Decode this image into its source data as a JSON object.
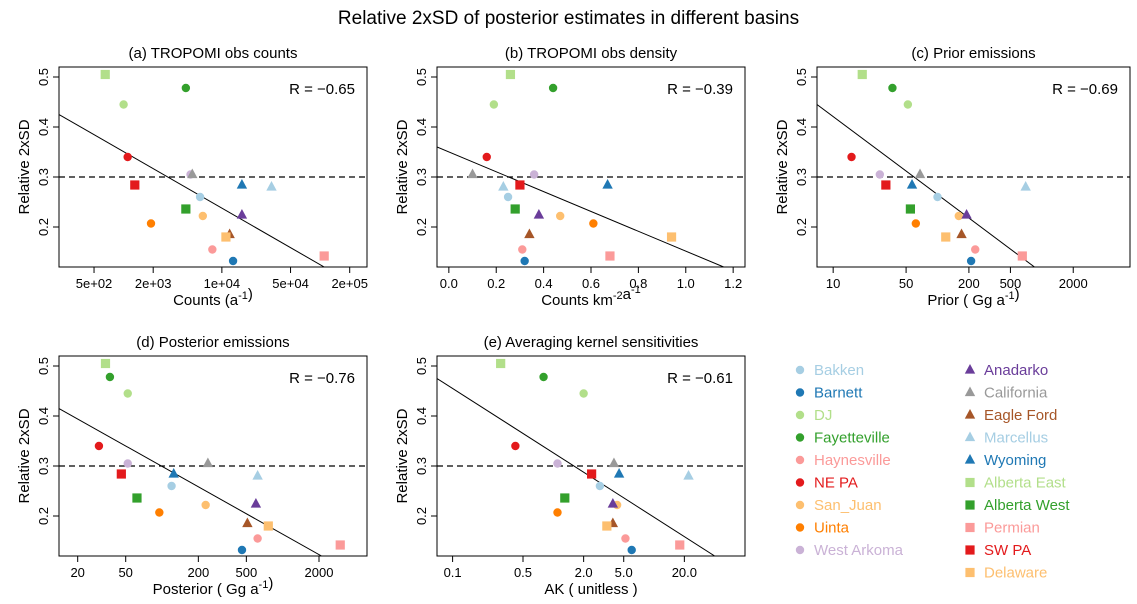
{
  "figure": {
    "title": "Relative 2xSD of posterior estimates in different basins",
    "reference_line": 0.3
  },
  "legend": [
    {
      "name": "Bakken",
      "color": "#a6cee3",
      "shape": "circle"
    },
    {
      "name": "Barnett",
      "color": "#1f78b4",
      "shape": "circle"
    },
    {
      "name": "DJ",
      "color": "#b2df8a",
      "shape": "circle"
    },
    {
      "name": "Fayetteville",
      "color": "#33a02c",
      "shape": "circle"
    },
    {
      "name": "Haynesville",
      "color": "#fb9a99",
      "shape": "circle"
    },
    {
      "name": "NE PA",
      "color": "#e31a1c",
      "shape": "circle"
    },
    {
      "name": "San_Juan",
      "color": "#fdbf6f",
      "shape": "circle"
    },
    {
      "name": "Uinta",
      "color": "#ff7f00",
      "shape": "circle"
    },
    {
      "name": "West Arkoma",
      "color": "#cab2d6",
      "shape": "circle"
    },
    {
      "name": "Anadarko",
      "color": "#6a3d9a",
      "shape": "triangle"
    },
    {
      "name": "California",
      "color": "#999999",
      "shape": "triangle"
    },
    {
      "name": "Eagle Ford",
      "color": "#a65628",
      "shape": "triangle"
    },
    {
      "name": "Marcellus",
      "color": "#a6cee3",
      "shape": "triangle"
    },
    {
      "name": "Wyoming",
      "color": "#1f78b4",
      "shape": "triangle"
    },
    {
      "name": "Alberta East",
      "color": "#b2df8a",
      "shape": "square"
    },
    {
      "name": "Alberta West",
      "color": "#33a02c",
      "shape": "square"
    },
    {
      "name": "Permian",
      "color": "#fb9a99",
      "shape": "square"
    },
    {
      "name": "SW PA",
      "color": "#e31a1c",
      "shape": "square"
    },
    {
      "name": "Delaware",
      "color": "#fdbf6f",
      "shape": "square"
    }
  ],
  "chart_data": [
    {
      "type": "scatter",
      "title": "(a) TROPOMI obs counts",
      "xlabel": "Counts (a⁻¹)",
      "ylabel": "Relative 2xSD",
      "annotation": "R = −0.65",
      "xscale": "log",
      "xlim": [
        220,
        300000
      ],
      "ylim": [
        0.12,
        0.52
      ],
      "xticks": [
        500,
        2000,
        10000,
        50000,
        200000
      ],
      "xtick_labels": [
        "5e+02",
        "2e+03",
        "1e+04",
        "5e+04",
        "2e+05"
      ],
      "yticks": [
        0.2,
        0.3,
        0.4,
        0.5
      ],
      "ytick_labels": [
        "0.2",
        "0.3",
        "0.4",
        "0.5"
      ],
      "regression_line": [
        [
          220,
          0.425
        ],
        [
          110000,
          0.12
        ]
      ],
      "points": {
        "Bakken": [
          6000,
          0.26
        ],
        "Barnett": [
          13000,
          0.132
        ],
        "DJ": [
          1000,
          0.445
        ],
        "Fayetteville": [
          4300,
          0.478
        ],
        "Haynesville": [
          8000,
          0.155
        ],
        "NE PA": [
          1100,
          0.34
        ],
        "San_Juan": [
          6400,
          0.222
        ],
        "Uinta": [
          1900,
          0.207
        ],
        "West Arkoma": [
          4800,
          0.305
        ],
        "Anadarko": [
          16000,
          0.224
        ],
        "California": [
          5000,
          0.305
        ],
        "Eagle Ford": [
          12000,
          0.185
        ],
        "Marcellus": [
          32000,
          0.28
        ],
        "Wyoming": [
          16000,
          0.284
        ],
        "Alberta East": [
          650,
          0.505
        ],
        "Alberta West": [
          4300,
          0.236
        ],
        "Permian": [
          110000,
          0.142
        ],
        "SW PA": [
          1300,
          0.284
        ],
        "Delaware": [
          11000,
          0.18
        ]
      }
    },
    {
      "type": "scatter",
      "title": "(b) TROPOMI obs density",
      "xlabel": "Counts km⁻²a⁻¹",
      "ylabel": "Relative 2xSD",
      "annotation": "R = −0.39",
      "xscale": "linear",
      "xlim": [
        -0.05,
        1.25
      ],
      "ylim": [
        0.12,
        0.52
      ],
      "xticks": [
        0,
        0.2,
        0.4,
        0.6,
        0.8,
        1.0,
        1.2
      ],
      "xtick_labels": [
        "0.0",
        "0.2",
        "0.4",
        "0.6",
        "0.8",
        "1.0",
        "1.2"
      ],
      "yticks": [
        0.2,
        0.3,
        0.4,
        0.5
      ],
      "ytick_labels": [
        "0.2",
        "0.3",
        "0.4",
        "0.5"
      ],
      "regression_line": [
        [
          -0.05,
          0.36
        ],
        [
          1.16,
          0.12
        ]
      ],
      "points": {
        "Bakken": [
          0.25,
          0.26
        ],
        "Barnett": [
          0.32,
          0.132
        ],
        "DJ": [
          0.19,
          0.445
        ],
        "Fayetteville": [
          0.44,
          0.478
        ],
        "Haynesville": [
          0.31,
          0.155
        ],
        "NE PA": [
          0.16,
          0.34
        ],
        "San_Juan": [
          0.47,
          0.222
        ],
        "Uinta": [
          0.61,
          0.207
        ],
        "West Arkoma": [
          0.36,
          0.305
        ],
        "Anadarko": [
          0.38,
          0.224
        ],
        "California": [
          0.1,
          0.305
        ],
        "Eagle Ford": [
          0.34,
          0.185
        ],
        "Marcellus": [
          0.23,
          0.28
        ],
        "Wyoming": [
          0.67,
          0.284
        ],
        "Alberta East": [
          0.26,
          0.505
        ],
        "Alberta West": [
          0.28,
          0.236
        ],
        "Permian": [
          0.68,
          0.142
        ],
        "SW PA": [
          0.3,
          0.284
        ],
        "Delaware": [
          0.94,
          0.18
        ]
      }
    },
    {
      "type": "scatter",
      "title": "(c) Prior emissions",
      "xlabel": "Prior ( Gg a⁻¹)",
      "ylabel": "Relative 2xSD",
      "annotation": "R = −0.69",
      "xscale": "log",
      "xlim": [
        7,
        7000
      ],
      "ylim": [
        0.12,
        0.52
      ],
      "xticks": [
        10,
        50,
        200,
        500,
        2000
      ],
      "xtick_labels": [
        "10",
        "50",
        "200",
        "500",
        "2000"
      ],
      "yticks": [
        0.2,
        0.3,
        0.4,
        0.5
      ],
      "ytick_labels": [
        "0.2",
        "0.3",
        "0.4",
        "0.5"
      ],
      "regression_line": [
        [
          7,
          0.445
        ],
        [
          850,
          0.12
        ]
      ],
      "points": {
        "Bakken": [
          100,
          0.26
        ],
        "Barnett": [
          210,
          0.132
        ],
        "DJ": [
          52,
          0.445
        ],
        "Fayetteville": [
          37,
          0.478
        ],
        "Haynesville": [
          230,
          0.155
        ],
        "NE PA": [
          15,
          0.34
        ],
        "San_Juan": [
          160,
          0.222
        ],
        "Uinta": [
          62,
          0.207
        ],
        "West Arkoma": [
          28,
          0.305
        ],
        "Anadarko": [
          190,
          0.224
        ],
        "California": [
          68,
          0.305
        ],
        "Eagle Ford": [
          170,
          0.185
        ],
        "Marcellus": [
          700,
          0.28
        ],
        "Wyoming": [
          57,
          0.284
        ],
        "Alberta East": [
          19,
          0.505
        ],
        "Alberta West": [
          55,
          0.236
        ],
        "Permian": [
          650,
          0.142
        ],
        "SW PA": [
          32,
          0.284
        ],
        "Delaware": [
          120,
          0.18
        ]
      }
    },
    {
      "type": "scatter",
      "title": "(d) Posterior emissions",
      "xlabel": "Posterior ( Gg a⁻¹)",
      "ylabel": "Relative 2xSD",
      "annotation": "R = −0.76",
      "xscale": "log",
      "xlim": [
        14,
        5000
      ],
      "ylim": [
        0.12,
        0.52
      ],
      "xticks": [
        20,
        50,
        200,
        500,
        2000
      ],
      "xtick_labels": [
        "20",
        "50",
        "200",
        "500",
        "2000"
      ],
      "yticks": [
        0.2,
        0.3,
        0.4,
        0.5
      ],
      "ytick_labels": [
        "0.2",
        "0.3",
        "0.4",
        "0.5"
      ],
      "regression_line": [
        [
          14,
          0.415
        ],
        [
          2100,
          0.12
        ]
      ],
      "points": {
        "Bakken": [
          120,
          0.26
        ],
        "Barnett": [
          460,
          0.132
        ],
        "DJ": [
          52,
          0.445
        ],
        "Fayetteville": [
          37,
          0.478
        ],
        "Haynesville": [
          620,
          0.155
        ],
        "NE PA": [
          30,
          0.34
        ],
        "San_Juan": [
          230,
          0.222
        ],
        "Uinta": [
          95,
          0.207
        ],
        "West Arkoma": [
          52,
          0.305
        ],
        "Anadarko": [
          600,
          0.224
        ],
        "California": [
          240,
          0.305
        ],
        "Eagle Ford": [
          510,
          0.185
        ],
        "Marcellus": [
          620,
          0.28
        ],
        "Wyoming": [
          125,
          0.284
        ],
        "Alberta East": [
          34,
          0.505
        ],
        "Alberta West": [
          62,
          0.236
        ],
        "Permian": [
          3000,
          0.142
        ],
        "SW PA": [
          46,
          0.284
        ],
        "Delaware": [
          760,
          0.18
        ]
      }
    },
    {
      "type": "scatter",
      "title": "(e) Averaging kernel sensitivities",
      "xlabel": "AK ( unitless )",
      "ylabel": "Relative 2xSD",
      "annotation": "R = −0.61",
      "xscale": "log",
      "xlim": [
        0.07,
        80
      ],
      "ylim": [
        0.12,
        0.52
      ],
      "xticks": [
        0.1,
        0.5,
        2.0,
        5.0,
        20.0
      ],
      "xtick_labels": [
        "0.1",
        "0.5",
        "2.0",
        "5.0",
        "20.0"
      ],
      "yticks": [
        0.2,
        0.3,
        0.4,
        0.5
      ],
      "ytick_labels": [
        "0.2",
        "0.3",
        "0.4",
        "0.5"
      ],
      "regression_line": [
        [
          0.07,
          0.475
        ],
        [
          40,
          0.12
        ]
      ],
      "points": {
        "Bakken": [
          2.9,
          0.26
        ],
        "Barnett": [
          6.0,
          0.132
        ],
        "DJ": [
          2.0,
          0.445
        ],
        "Fayetteville": [
          0.8,
          0.478
        ],
        "Haynesville": [
          5.2,
          0.155
        ],
        "NE PA": [
          0.42,
          0.34
        ],
        "San_Juan": [
          4.3,
          0.222
        ],
        "Uinta": [
          1.1,
          0.207
        ],
        "West Arkoma": [
          1.1,
          0.305
        ],
        "Anadarko": [
          3.9,
          0.224
        ],
        "California": [
          4.0,
          0.305
        ],
        "Eagle Ford": [
          3.9,
          0.185
        ],
        "Marcellus": [
          22,
          0.28
        ],
        "Wyoming": [
          4.5,
          0.284
        ],
        "Alberta East": [
          0.3,
          0.505
        ],
        "Alberta West": [
          1.3,
          0.236
        ],
        "Permian": [
          18,
          0.142
        ],
        "SW PA": [
          2.4,
          0.284
        ],
        "Delaware": [
          3.4,
          0.18
        ]
      }
    }
  ]
}
